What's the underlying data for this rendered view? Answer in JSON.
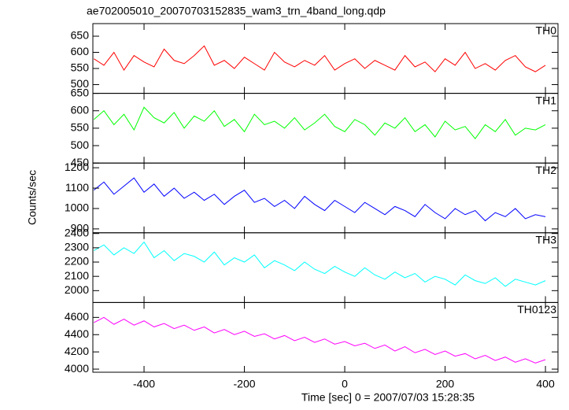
{
  "chart_data": {
    "type": "line",
    "title": "ae702005010_20070703152835_wam3_trn_4band_long.qdp",
    "xlabel": "Time [sec] 0 = 2007/07/03 15:28:35",
    "ylabel": "Counts/sec",
    "x": [
      -500,
      -480,
      -460,
      -440,
      -420,
      -400,
      -380,
      -360,
      -340,
      -320,
      -300,
      -280,
      -260,
      -240,
      -220,
      -200,
      -180,
      -160,
      -140,
      -120,
      -100,
      -80,
      -60,
      -40,
      -20,
      0,
      20,
      40,
      60,
      80,
      100,
      120,
      140,
      160,
      180,
      200,
      220,
      240,
      260,
      280,
      300,
      320,
      340,
      360,
      380,
      400
    ],
    "xlim": [
      -502,
      425
    ],
    "xticks": [
      -400,
      -200,
      0,
      200,
      400
    ],
    "series": [
      {
        "name": "TH0",
        "color": "#ff0000",
        "ylim": [
          473,
          689
        ],
        "yticks": [
          500,
          550,
          600,
          650
        ],
        "values": [
          580,
          560,
          600,
          545,
          590,
          570,
          555,
          610,
          575,
          565,
          590,
          620,
          560,
          575,
          550,
          585,
          565,
          545,
          600,
          570,
          555,
          575,
          560,
          590,
          545,
          565,
          580,
          550,
          575,
          560,
          545,
          590,
          555,
          570,
          540,
          580,
          560,
          600,
          550,
          565,
          545,
          575,
          590,
          555,
          540,
          560
        ]
      },
      {
        "name": "TH1",
        "color": "#00ff00",
        "ylim": [
          450,
          650
        ],
        "yticks": [
          450,
          500,
          550,
          600,
          650
        ],
        "values": [
          575,
          600,
          560,
          590,
          545,
          610,
          580,
          565,
          595,
          550,
          585,
          570,
          600,
          555,
          575,
          540,
          590,
          560,
          570,
          550,
          580,
          545,
          565,
          590,
          555,
          540,
          575,
          560,
          530,
          565,
          550,
          580,
          540,
          560,
          525,
          570,
          545,
          555,
          520,
          560,
          540,
          575,
          530,
          550,
          545,
          560
        ]
      },
      {
        "name": "TH2",
        "color": "#0000ff",
        "ylim": [
          881,
          1223
        ],
        "yticks": [
          900,
          1000,
          1100,
          1200
        ],
        "values": [
          1090,
          1130,
          1070,
          1110,
          1150,
          1080,
          1120,
          1060,
          1100,
          1050,
          1080,
          1040,
          1070,
          1020,
          1060,
          1090,
          1030,
          1050,
          1010,
          1040,
          1000,
          1060,
          1020,
          990,
          1040,
          1010,
          980,
          1030,
          1000,
          970,
          1010,
          990,
          960,
          1020,
          980,
          950,
          1000,
          970,
          990,
          940,
          980,
          960,
          1000,
          950,
          970,
          960
        ]
      },
      {
        "name": "TH3",
        "color": "#00ffff",
        "ylim": [
          1917,
          2405
        ],
        "yticks": [
          2000,
          2100,
          2200,
          2300,
          2400
        ],
        "values": [
          2280,
          2320,
          2250,
          2300,
          2260,
          2340,
          2230,
          2280,
          2210,
          2260,
          2240,
          2200,
          2270,
          2180,
          2230,
          2200,
          2250,
          2160,
          2210,
          2180,
          2140,
          2200,
          2150,
          2120,
          2170,
          2130,
          2100,
          2160,
          2110,
          2080,
          2130,
          2090,
          2120,
          2060,
          2100,
          2080,
          2040,
          2110,
          2070,
          2050,
          2090,
          2030,
          2080,
          2060,
          2040,
          2070
        ]
      },
      {
        "name": "TH0123",
        "color": "#ff00ff",
        "ylim": [
          3964,
          4773
        ],
        "yticks": [
          4000,
          4200,
          4400,
          4600
        ],
        "values": [
          4540,
          4600,
          4520,
          4580,
          4510,
          4560,
          4490,
          4530,
          4470,
          4510,
          4450,
          4490,
          4420,
          4460,
          4400,
          4440,
          4380,
          4410,
          4350,
          4390,
          4330,
          4370,
          4310,
          4350,
          4290,
          4320,
          4270,
          4300,
          4240,
          4280,
          4210,
          4260,
          4190,
          4230,
          4170,
          4210,
          4150,
          4180,
          4120,
          4160,
          4100,
          4140,
          4080,
          4120,
          4070,
          4110
        ]
      }
    ]
  }
}
